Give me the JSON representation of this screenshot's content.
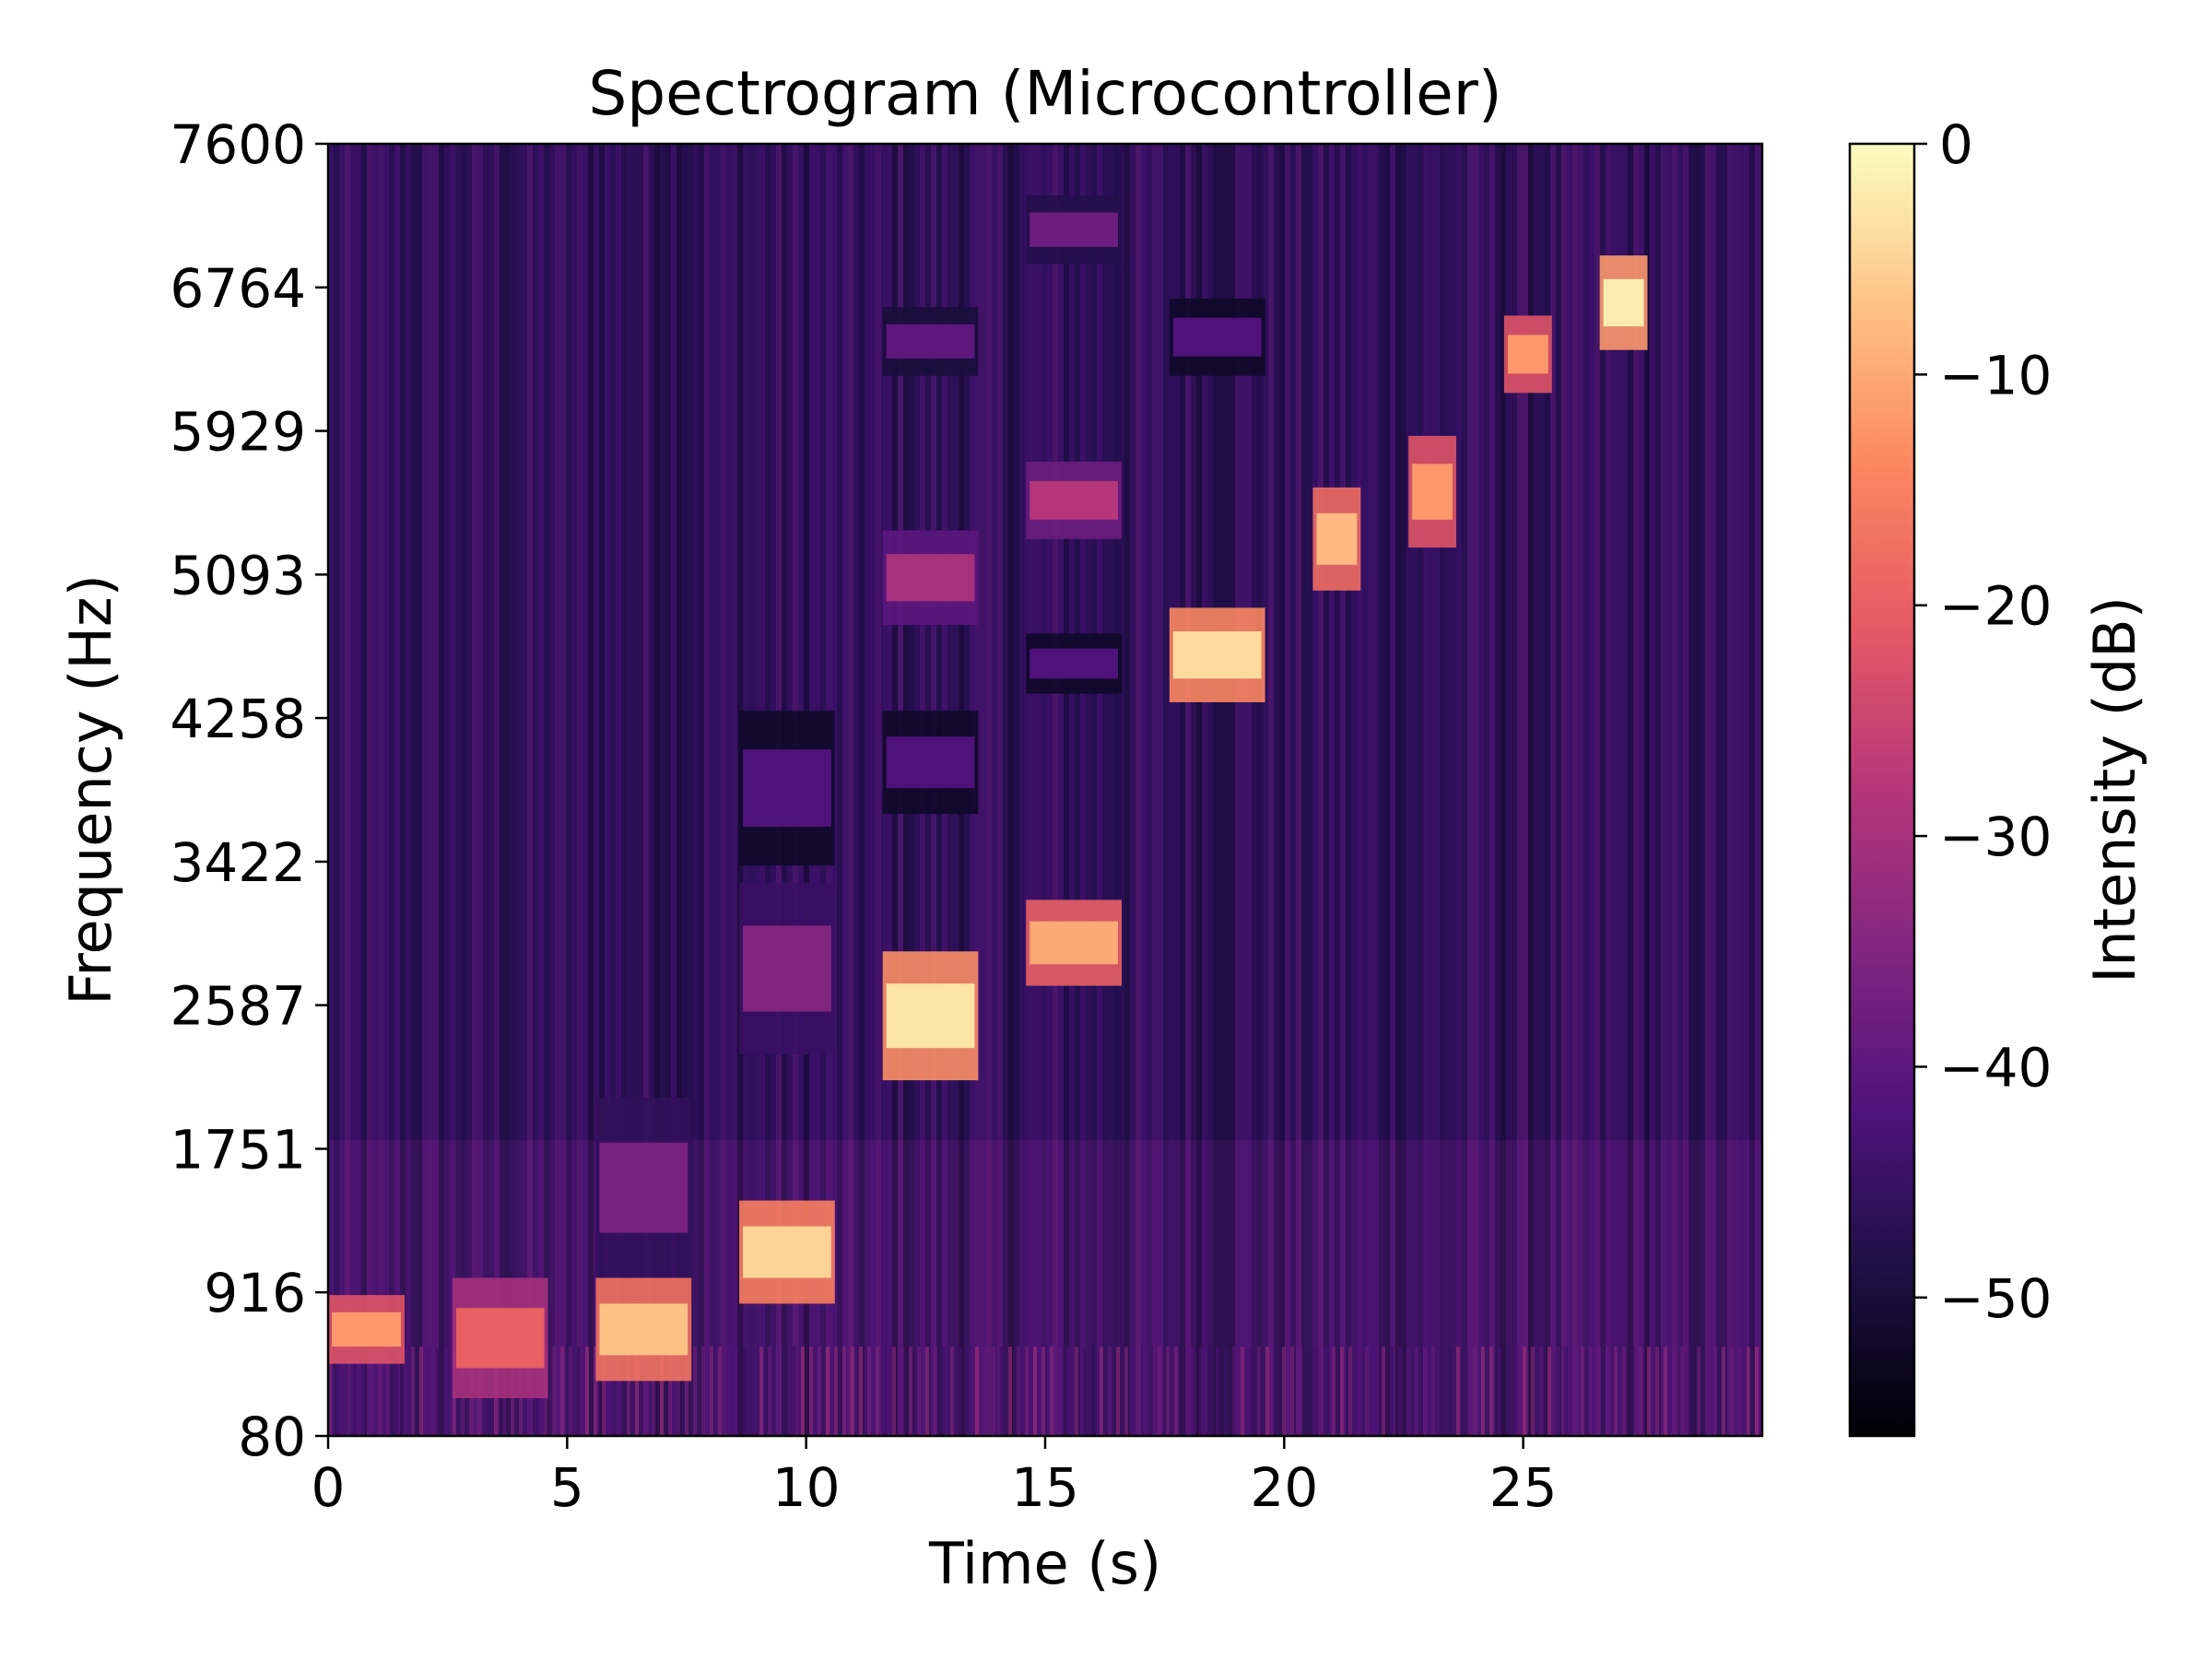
{
  "chart_data": {
    "type": "heatmap",
    "title": "Spectrogram (Microcontroller)",
    "xlabel": "Time (s)",
    "ylabel": "Frequency (Hz)",
    "xlim": [
      0,
      30
    ],
    "ylim": [
      80,
      7600
    ],
    "x_ticks": [
      0,
      5,
      10,
      15,
      20,
      25
    ],
    "y_ticks": [
      80,
      916,
      1751,
      2587,
      3422,
      4258,
      5093,
      5929,
      6764,
      7600
    ],
    "colorbar": {
      "label": "Intensity (dB)",
      "range": [
        -56,
        0
      ],
      "ticks": [
        0,
        -10,
        -20,
        -30,
        -40,
        -50
      ],
      "tick_labels": [
        "0",
        "−10",
        "−20",
        "−30",
        "−40",
        "−50"
      ],
      "colormap": "magma"
    },
    "background_db": -45,
    "tones": [
      {
        "t_start": 0.0,
        "t_end": 1.6,
        "freq_low": 500,
        "freq_high": 900,
        "db": -12
      },
      {
        "t_start": 2.6,
        "t_end": 4.6,
        "freq_low": 300,
        "freq_high": 1000,
        "db": -20
      },
      {
        "t_start": 5.6,
        "t_end": 7.6,
        "freq_low": 400,
        "freq_high": 1000,
        "db": -7
      },
      {
        "t_start": 5.6,
        "t_end": 7.6,
        "freq_low": 1000,
        "freq_high": 2050,
        "db": -36
      },
      {
        "t_start": 8.6,
        "t_end": 10.6,
        "freq_low": 850,
        "freq_high": 1450,
        "db": -5
      },
      {
        "t_start": 8.6,
        "t_end": 10.6,
        "freq_low": 2300,
        "freq_high": 3300,
        "db": -35
      },
      {
        "t_start": 8.6,
        "t_end": 10.6,
        "freq_low": 3400,
        "freq_high": 4300,
        "db": -42
      },
      {
        "t_start": 11.6,
        "t_end": 13.6,
        "freq_low": 2150,
        "freq_high": 2900,
        "db": -3
      },
      {
        "t_start": 11.6,
        "t_end": 13.6,
        "freq_low": 4800,
        "freq_high": 5350,
        "db": -30
      },
      {
        "t_start": 11.6,
        "t_end": 13.6,
        "freq_low": 6250,
        "freq_high": 6650,
        "db": -40
      },
      {
        "t_start": 11.6,
        "t_end": 13.6,
        "freq_low": 3700,
        "freq_high": 4300,
        "db": -42
      },
      {
        "t_start": 14.6,
        "t_end": 16.6,
        "freq_low": 2700,
        "freq_high": 3200,
        "db": -10
      },
      {
        "t_start": 14.6,
        "t_end": 16.6,
        "freq_low": 5300,
        "freq_high": 5750,
        "db": -28
      },
      {
        "t_start": 14.6,
        "t_end": 16.6,
        "freq_low": 4400,
        "freq_high": 4750,
        "db": -42
      },
      {
        "t_start": 14.6,
        "t_end": 16.6,
        "freq_low": 6900,
        "freq_high": 7300,
        "db": -38
      },
      {
        "t_start": 17.6,
        "t_end": 19.6,
        "freq_low": 4350,
        "freq_high": 4900,
        "db": -4
      },
      {
        "t_start": 17.6,
        "t_end": 19.6,
        "freq_low": 6250,
        "freq_high": 6700,
        "db": -42
      },
      {
        "t_start": 20.6,
        "t_end": 21.6,
        "freq_low": 5000,
        "freq_high": 5600,
        "db": -8
      },
      {
        "t_start": 22.6,
        "t_end": 23.6,
        "freq_low": 5250,
        "freq_high": 5900,
        "db": -12
      },
      {
        "t_start": 24.6,
        "t_end": 25.6,
        "freq_low": 6150,
        "freq_high": 6600,
        "db": -12
      },
      {
        "t_start": 26.6,
        "t_end": 27.6,
        "freq_low": 6400,
        "freq_high": 6950,
        "db": -2
      }
    ]
  }
}
